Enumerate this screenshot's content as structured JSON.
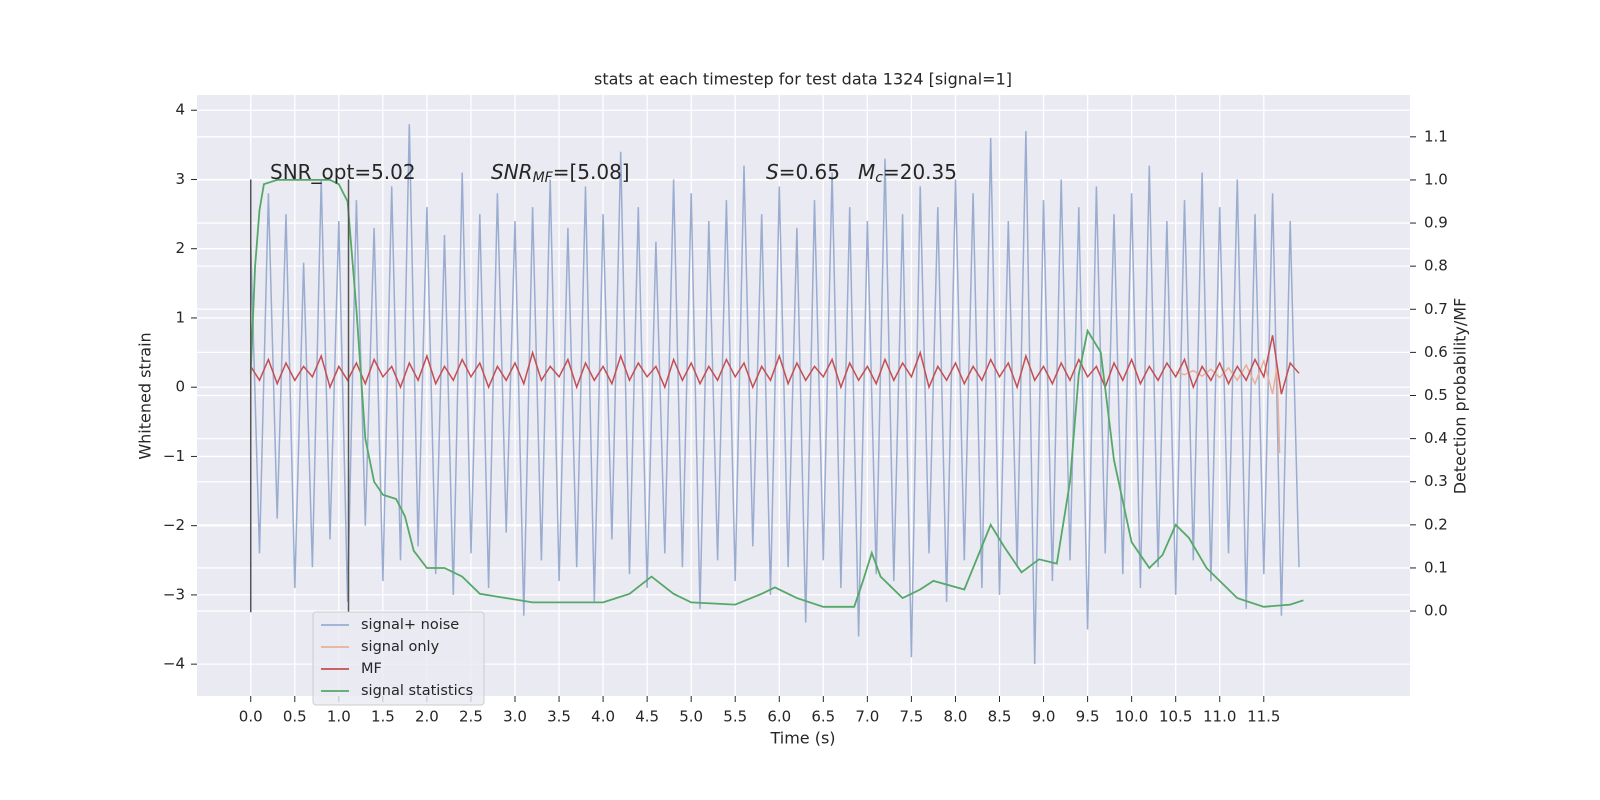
{
  "chart_data": {
    "type": "line",
    "title": "stats at each timestep for test data 1324 [signal=1]",
    "xlabel": "Time (s)",
    "ylabel": "Whitened strain",
    "y2label": "Detection probability/MF",
    "xlim": [
      -0.61,
      13.16
    ],
    "ylim": [
      -4.46,
      4.22
    ],
    "y2lim": [
      -0.197,
      1.197
    ],
    "xticks": [
      {
        "value": 0,
        "label": "0.0"
      },
      0.5,
      {
        "value": 1,
        "label": "1.0"
      },
      1.5,
      {
        "value": 2,
        "label": "2.0"
      },
      2.5,
      {
        "value": 3,
        "label": "3.0"
      },
      3.5,
      {
        "value": 4,
        "label": "4.0"
      },
      4.5,
      {
        "value": 5,
        "label": "5.0"
      },
      5.5,
      {
        "value": 6,
        "label": "6.0"
      },
      6.5,
      {
        "value": 7,
        "label": "7.0"
      },
      7.5,
      {
        "value": 8,
        "label": "8.0"
      },
      8.5,
      {
        "value": 9,
        "label": "9.0"
      },
      9.5,
      {
        "value": 10,
        "label": "10.0"
      },
      10.5,
      {
        "value": 11,
        "label": "11.0"
      },
      11.5
    ],
    "yticks": [
      {
        "value": -4,
        "label": "−4"
      },
      {
        "value": -3,
        "label": "−3"
      },
      {
        "value": -2,
        "label": "−2"
      },
      {
        "value": -1,
        "label": "−1"
      },
      0,
      1,
      2,
      3,
      4
    ],
    "y2ticks": [
      {
        "value": 0,
        "label": "0.0"
      },
      0.1,
      0.2,
      0.3,
      0.4,
      0.5,
      0.6,
      0.7,
      0.8,
      0.9,
      {
        "value": 1,
        "label": "1.0"
      },
      1.1
    ],
    "grid": true,
    "legend": "lower left",
    "annotations": [
      {
        "parts": [
          {
            "text": "SNR_opt=5.02",
            "style": "normal"
          }
        ]
      },
      {
        "parts": [
          {
            "text": "SNR",
            "style": "italic"
          },
          {
            "text": "MF",
            "style": "italic-sub"
          },
          {
            "text": "=[5.08]",
            "style": "normal"
          }
        ]
      },
      {
        "parts": [
          {
            "text": "S",
            "style": "italic"
          },
          {
            "text": "=0.65",
            "style": "normal"
          }
        ]
      },
      {
        "parts": [
          {
            "text": "M",
            "style": "italic"
          },
          {
            "text": "c",
            "style": "italic-sub"
          },
          {
            "text": "=20.35",
            "style": "normal"
          }
        ]
      }
    ],
    "vlines": [
      {
        "x": 0,
        "ymin": -3.25,
        "ymax": 3.0,
        "color": "#555555"
      },
      {
        "x": 1.11,
        "ymin": -3.25,
        "ymax": 3.0,
        "color": "#555555"
      }
    ],
    "x": [
      0.0,
      0.1,
      0.2,
      0.3,
      0.4,
      0.5,
      0.6,
      0.7,
      0.8,
      0.9,
      1.0,
      1.1,
      1.2,
      1.3,
      1.4,
      1.5,
      1.6,
      1.7,
      1.8,
      1.9,
      2.0,
      2.1,
      2.2,
      2.3,
      2.4,
      2.5,
      2.6,
      2.7,
      2.8,
      2.9,
      3.0,
      3.1,
      3.2,
      3.3,
      3.4,
      3.5,
      3.6,
      3.7,
      3.8,
      3.9,
      4.0,
      4.1,
      4.2,
      4.3,
      4.4,
      4.5,
      4.6,
      4.7,
      4.8,
      4.9,
      5.0,
      5.1,
      5.2,
      5.3,
      5.4,
      5.5,
      5.6,
      5.7,
      5.8,
      5.9,
      6.0,
      6.1,
      6.2,
      6.3,
      6.4,
      6.5,
      6.6,
      6.7,
      6.8,
      6.9,
      7.0,
      7.1,
      7.2,
      7.3,
      7.4,
      7.5,
      7.6,
      7.7,
      7.8,
      7.9,
      8.0,
      8.1,
      8.2,
      8.3,
      8.4,
      8.5,
      8.6,
      8.7,
      8.8,
      8.9,
      9.0,
      9.1,
      9.2,
      9.3,
      9.4,
      9.5,
      9.6,
      9.7,
      9.8,
      9.9,
      10.0,
      10.1,
      10.2,
      10.3,
      10.4,
      10.5,
      10.6,
      10.7,
      10.8,
      10.9,
      11.0,
      11.1,
      11.2,
      11.3,
      11.4,
      11.5,
      11.6,
      11.7,
      11.8,
      11.9
    ],
    "series": [
      {
        "name": "signal+ noise",
        "color": "#9aadd0",
        "values": [
          2.1,
          -2.4,
          2.8,
          -1.9,
          2.5,
          -2.9,
          1.8,
          -2.6,
          3.0,
          -2.2,
          2.4,
          -3.1,
          2.7,
          -2.0,
          2.3,
          -2.8,
          2.9,
          -2.5,
          3.8,
          -2.3,
          2.6,
          -2.7,
          2.2,
          -3.0,
          3.1,
          -2.4,
          2.5,
          -2.9,
          2.8,
          -2.1,
          2.4,
          -3.3,
          2.6,
          -2.5,
          3.0,
          -2.8,
          2.3,
          -2.6,
          2.9,
          -3.1,
          2.5,
          -2.2,
          3.4,
          -2.7,
          2.6,
          -2.9,
          2.1,
          -2.4,
          3.0,
          -2.6,
          2.8,
          -3.2,
          2.4,
          -2.5,
          2.7,
          -2.8,
          3.2,
          -2.3,
          2.5,
          -3.0,
          2.9,
          -2.6,
          2.3,
          -3.4,
          2.7,
          -2.5,
          3.1,
          -2.9,
          2.6,
          -3.6,
          2.4,
          -2.7,
          3.3,
          -2.8,
          2.5,
          -3.9,
          2.9,
          -2.4,
          2.6,
          -3.1,
          3.0,
          -2.5,
          2.8,
          -2.9,
          3.6,
          -3.0,
          2.4,
          -2.6,
          3.7,
          -4.0,
          2.7,
          -2.8,
          3.0,
          -2.5,
          2.6,
          -3.5,
          2.9,
          -2.4,
          2.5,
          -2.7,
          2.8,
          -2.9,
          3.2,
          -2.6,
          2.4,
          -3.0,
          2.7,
          -2.5,
          3.1,
          -2.8,
          2.6,
          -2.4,
          3.0,
          -3.2,
          2.5,
          -2.7,
          2.8,
          -3.3,
          2.4,
          -2.6
        ]
      },
      {
        "name": "signal only",
        "color": "#e8b09a",
        "x": [
          10.5,
          10.6,
          10.7,
          10.8,
          10.9,
          11.0,
          11.1,
          11.2,
          11.3,
          11.4,
          11.5,
          11.6,
          11.65,
          11.68
        ],
        "values": [
          0.22,
          0.18,
          0.24,
          0.16,
          0.26,
          0.14,
          0.28,
          0.1,
          0.32,
          0.05,
          0.38,
          -0.1,
          0.3,
          -0.95
        ]
      },
      {
        "name": "MF",
        "color": "#c44e52",
        "values": [
          0.3,
          0.1,
          0.4,
          0.05,
          0.35,
          0.1,
          0.3,
          0.15,
          0.45,
          0.0,
          0.3,
          0.1,
          0.35,
          0.05,
          0.4,
          0.15,
          0.3,
          0.0,
          0.35,
          0.1,
          0.45,
          0.05,
          0.3,
          0.1,
          0.4,
          0.15,
          0.35,
          0.0,
          0.3,
          0.1,
          0.35,
          0.05,
          0.5,
          0.1,
          0.3,
          0.15,
          0.4,
          0.0,
          0.35,
          0.1,
          0.3,
          0.05,
          0.45,
          0.1,
          0.35,
          0.15,
          0.3,
          0.0,
          0.4,
          0.1,
          0.35,
          0.05,
          0.3,
          0.1,
          0.4,
          0.15,
          0.35,
          0.0,
          0.3,
          0.1,
          0.45,
          0.05,
          0.35,
          0.1,
          0.3,
          0.15,
          0.4,
          0.0,
          0.35,
          0.1,
          0.3,
          0.05,
          0.4,
          0.1,
          0.35,
          0.15,
          0.5,
          0.0,
          0.3,
          0.1,
          0.35,
          0.05,
          0.3,
          0.1,
          0.4,
          0.15,
          0.35,
          0.0,
          0.45,
          0.1,
          0.3,
          0.05,
          0.35,
          0.1,
          0.4,
          0.15,
          0.3,
          0.0,
          0.35,
          0.1,
          0.4,
          0.05,
          0.3,
          0.1,
          0.35,
          0.15,
          0.4,
          0.0,
          0.3,
          0.1,
          0.35,
          0.05,
          0.3,
          0.1,
          0.4,
          0.15,
          0.75,
          -0.1,
          0.35,
          0.2
        ]
      },
      {
        "name": "signal statistics",
        "color": "#55a868",
        "axis": "y2",
        "x": [
          0.0,
          0.05,
          0.1,
          0.15,
          0.3,
          0.9,
          1.0,
          1.1,
          1.2,
          1.3,
          1.4,
          1.5,
          1.65,
          1.75,
          1.85,
          2.0,
          2.2,
          2.4,
          2.6,
          2.9,
          3.2,
          3.5,
          4.0,
          4.3,
          4.55,
          4.8,
          5.0,
          5.5,
          5.8,
          5.95,
          6.2,
          6.5,
          6.85,
          6.95,
          7.05,
          7.15,
          7.4,
          7.6,
          7.75,
          8.1,
          8.3,
          8.4,
          8.55,
          8.75,
          8.95,
          9.15,
          9.3,
          9.4,
          9.5,
          9.65,
          9.8,
          10.0,
          10.2,
          10.35,
          10.5,
          10.65,
          10.85,
          11.2,
          11.5,
          11.8,
          11.95
        ],
        "values": [
          0.55,
          0.8,
          0.93,
          0.99,
          1.0,
          1.0,
          0.99,
          0.95,
          0.7,
          0.4,
          0.3,
          0.27,
          0.26,
          0.22,
          0.14,
          0.1,
          0.1,
          0.08,
          0.04,
          0.03,
          0.02,
          0.02,
          0.02,
          0.04,
          0.08,
          0.04,
          0.02,
          0.015,
          0.04,
          0.055,
          0.03,
          0.01,
          0.01,
          0.07,
          0.135,
          0.08,
          0.03,
          0.05,
          0.07,
          0.05,
          0.15,
          0.2,
          0.15,
          0.09,
          0.12,
          0.11,
          0.3,
          0.55,
          0.65,
          0.6,
          0.35,
          0.16,
          0.1,
          0.13,
          0.2,
          0.17,
          0.1,
          0.03,
          0.01,
          0.015,
          0.025
        ]
      }
    ]
  }
}
